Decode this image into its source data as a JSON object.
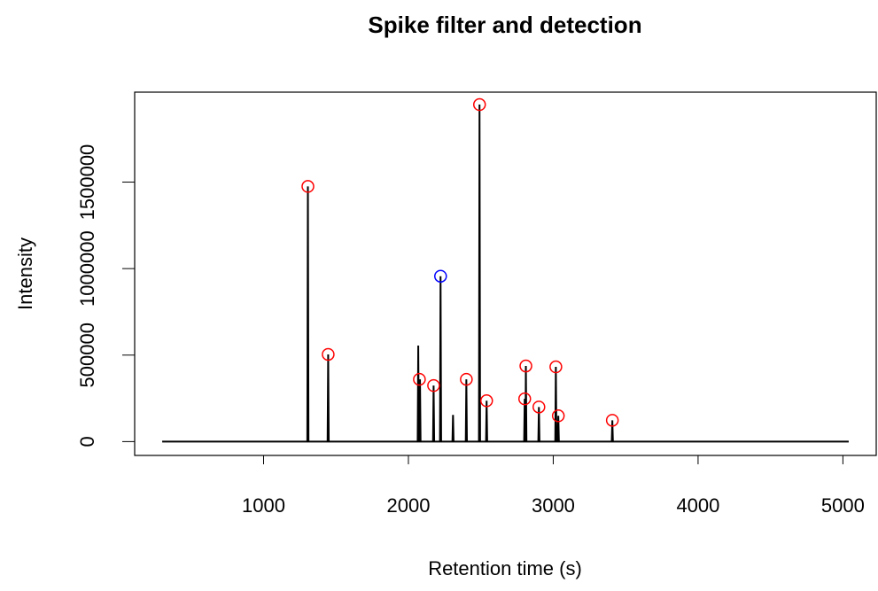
{
  "chart_data": {
    "type": "line",
    "title": "Spike filter and detection",
    "xlabel": "Retention time (s)",
    "ylabel": "Intensity",
    "xlim": [
      110,
      5230
    ],
    "ylim": [
      -80000,
      2020000
    ],
    "xticks": [
      1000,
      2000,
      3000,
      4000,
      5000
    ],
    "yticks": [
      0,
      500000,
      1000000,
      1500000
    ],
    "series": [
      {
        "style": "line",
        "color": "#000000",
        "x": [
          300,
          1302,
          1306,
          1310,
          1442,
          1446,
          1450,
          2064,
          2068,
          2072,
          2076,
          2080,
          2084,
          2170,
          2174,
          2178,
          2218,
          2222,
          2226,
          2304,
          2308,
          2312,
          2396,
          2400,
          2404,
          2487,
          2491,
          2495,
          2536,
          2540,
          2544,
          2799,
          2803,
          2806,
          2808,
          2811,
          2815,
          2897,
          2901,
          2905,
          3014,
          3018,
          3022,
          3031,
          3035,
          3039,
          3404,
          3408,
          3412,
          5040
        ],
        "values": [
          0,
          0,
          1475000,
          0,
          0,
          504000,
          0,
          0,
          555000,
          0,
          0,
          360000,
          0,
          0,
          324000,
          0,
          0,
          956000,
          0,
          0,
          154000,
          0,
          0,
          360000,
          0,
          0,
          1948000,
          0,
          0,
          236000,
          0,
          0,
          247000,
          0,
          0,
          437000,
          0,
          0,
          200000,
          0,
          0,
          432000,
          0,
          0,
          149000,
          0,
          0,
          123000,
          0,
          0
        ]
      },
      {
        "style": "points",
        "color": "#ff0000",
        "x": [
          1306,
          1446,
          2076,
          2174,
          2400,
          2491,
          2540,
          2811,
          2803,
          2901,
          3018,
          3035,
          3408
        ],
        "values": [
          1475000,
          504000,
          360000,
          324000,
          360000,
          1948000,
          236000,
          437000,
          247000,
          200000,
          432000,
          149000,
          123000
        ]
      },
      {
        "style": "points",
        "color": "#0000ff",
        "x": [
          2222
        ],
        "values": [
          956000
        ]
      }
    ]
  }
}
